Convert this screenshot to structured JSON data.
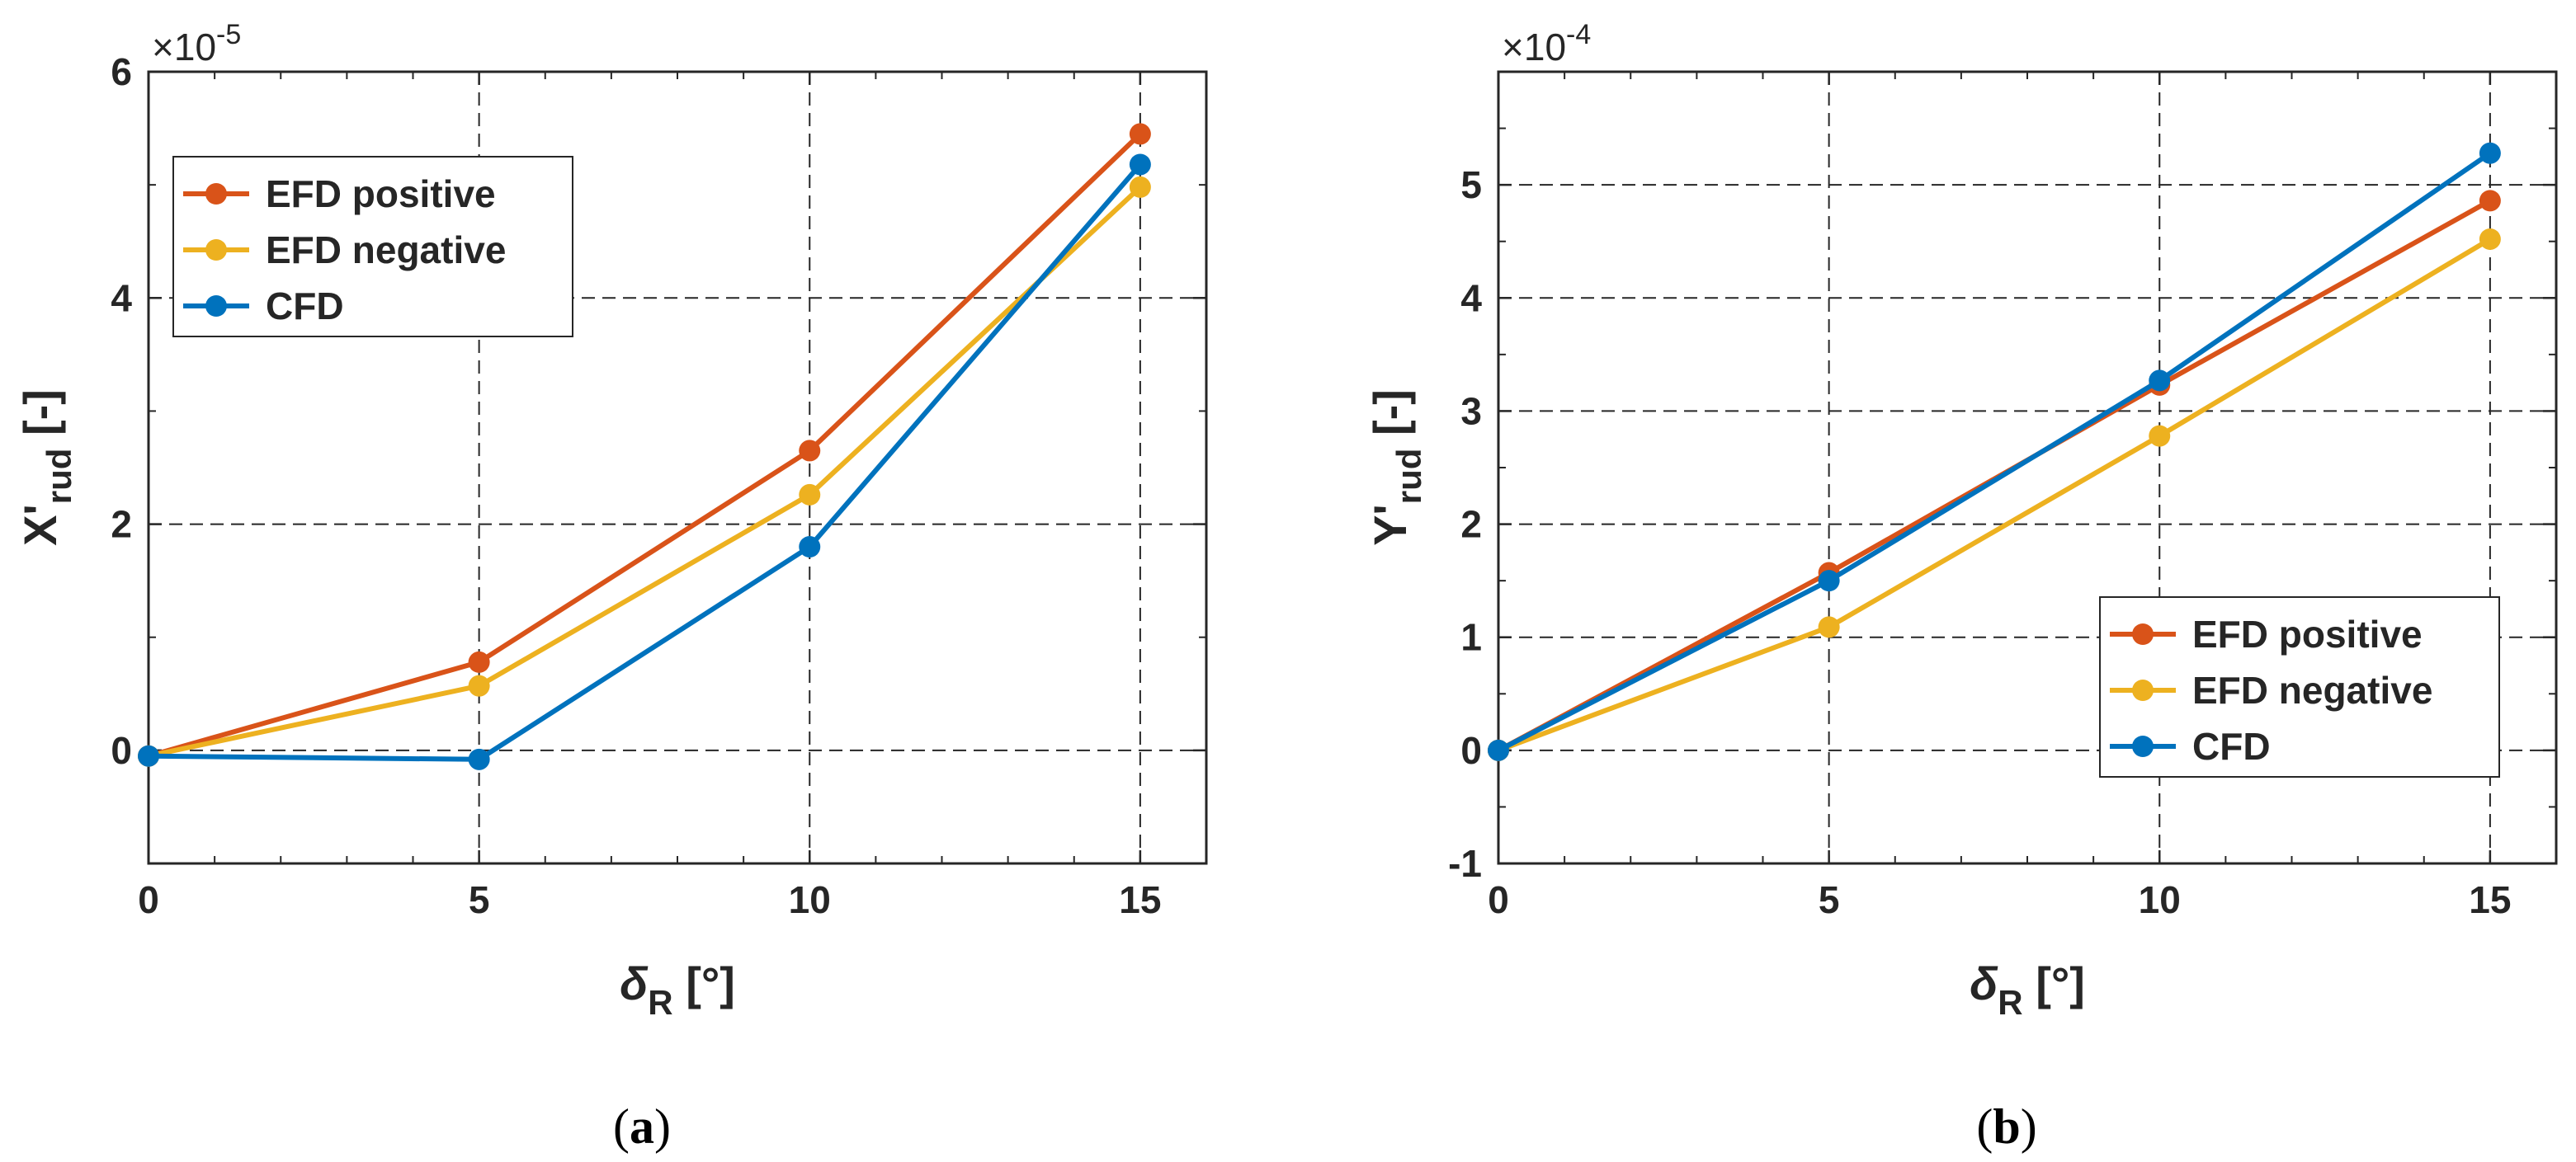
{
  "figure": {
    "panels": [
      {
        "caption_letter": "a"
      },
      {
        "caption_letter": "b"
      }
    ]
  },
  "chart_data": [
    {
      "type": "line",
      "title": "",
      "xlabel": {
        "main": "δ",
        "sub": "R",
        "unit": " [°]"
      },
      "ylabel": {
        "main": "X'",
        "sub": "rud",
        "unit": " [-]"
      },
      "exponent_label": {
        "base": "×10",
        "exp": "-5"
      },
      "xlim": [
        0,
        16
      ],
      "ylim": [
        -1,
        6
      ],
      "x_ticks": [
        0,
        5,
        10,
        15
      ],
      "x_minor_ticks": [
        1,
        2,
        3,
        4,
        6,
        7,
        8,
        9,
        11,
        12,
        13,
        14
      ],
      "y_ticks": [
        0,
        2,
        4,
        6
      ],
      "y_tick_labels": [
        "0",
        "2",
        "4",
        "6"
      ],
      "y_minor_ticks": [
        -1,
        1,
        3,
        5
      ],
      "grid": true,
      "legend_position": "top-left",
      "x": [
        0,
        5,
        10,
        15
      ],
      "series": [
        {
          "name": "EFD positive",
          "color": "#d95319",
          "values": [
            -0.05,
            0.78,
            2.65,
            5.45
          ]
        },
        {
          "name": "EFD negative",
          "color": "#edb120",
          "values": [
            -0.05,
            0.57,
            2.26,
            4.98
          ]
        },
        {
          "name": "CFD",
          "color": "#0072bd",
          "values": [
            -0.05,
            -0.08,
            1.8,
            5.18
          ]
        }
      ]
    },
    {
      "type": "line",
      "title": "",
      "xlabel": {
        "main": "δ",
        "sub": "R",
        "unit": " [°]"
      },
      "ylabel": {
        "main": "Y'",
        "sub": "rud",
        "unit": " [-]"
      },
      "exponent_label": {
        "base": "×10",
        "exp": "-4"
      },
      "xlim": [
        0,
        16
      ],
      "ylim": [
        -1,
        6
      ],
      "x_ticks": [
        0,
        5,
        10,
        15
      ],
      "x_minor_ticks": [
        1,
        2,
        3,
        4,
        6,
        7,
        8,
        9,
        11,
        12,
        13,
        14
      ],
      "y_ticks": [
        -1,
        0,
        1,
        2,
        3,
        4,
        5
      ],
      "y_tick_labels": [
        "-1",
        "0",
        "1",
        "2",
        "3",
        "4",
        "5"
      ],
      "y_minor_ticks": [
        -0.5,
        0.5,
        1.5,
        2.5,
        3.5,
        4.5,
        5.5
      ],
      "grid": true,
      "legend_position": "bottom-right",
      "x": [
        0,
        5,
        10,
        15
      ],
      "series": [
        {
          "name": "EFD positive",
          "color": "#d95319",
          "values": [
            0.0,
            1.57,
            3.23,
            4.86
          ]
        },
        {
          "name": "EFD negative",
          "color": "#edb120",
          "values": [
            0.0,
            1.09,
            2.78,
            4.52
          ]
        },
        {
          "name": "CFD",
          "color": "#0072bd",
          "values": [
            0.0,
            1.5,
            3.27,
            5.28
          ]
        }
      ]
    }
  ]
}
